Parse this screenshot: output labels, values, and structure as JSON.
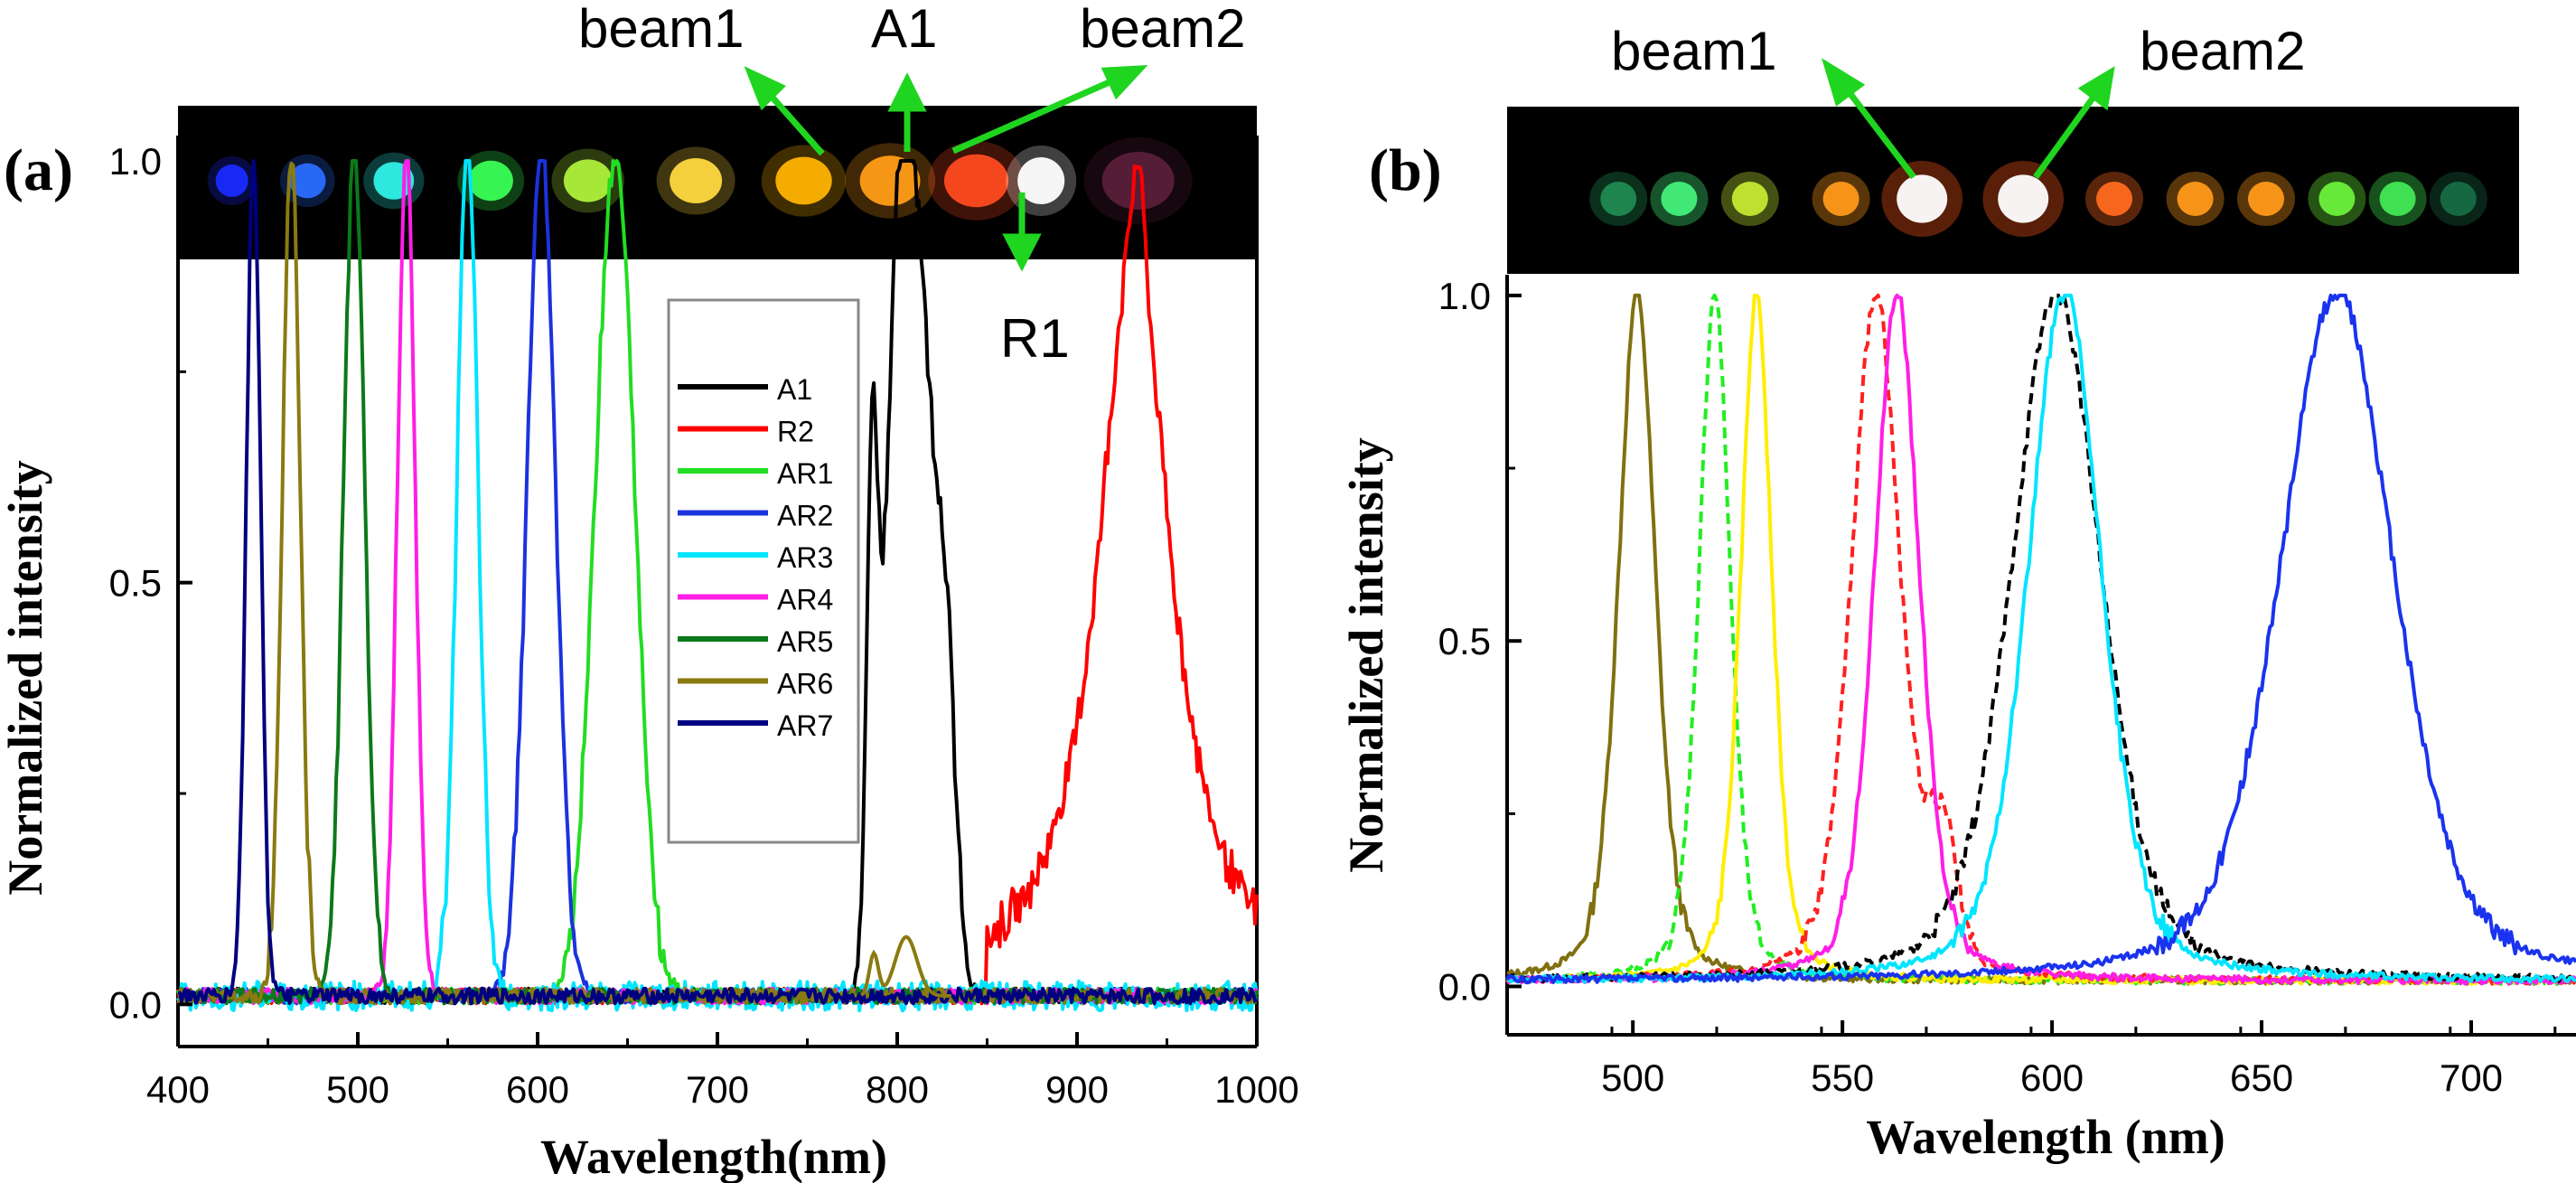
{
  "panels": [
    {
      "id": "a",
      "label": "(a)",
      "image_labels": {
        "beam1": "beam1",
        "a1": "A1",
        "beam2": "beam2",
        "r1": "R1"
      },
      "photo_spots": [
        {
          "color": "#1a2bff",
          "pos": 0.05
        },
        {
          "color": "#2b6bff",
          "pos": 0.12
        },
        {
          "color": "#30f0e8",
          "pos": 0.2
        },
        {
          "color": "#39ff55",
          "pos": 0.29
        },
        {
          "color": "#aef03a",
          "pos": 0.38
        },
        {
          "color": "#ffd940",
          "pos": 0.48
        },
        {
          "color": "#ffb300",
          "pos": 0.58
        },
        {
          "color": "#ff9c16",
          "pos": 0.66
        },
        {
          "color": "#ff4a20",
          "pos": 0.74
        },
        {
          "color": "#ffffff",
          "pos": 0.8
        },
        {
          "color": "#5a1f3a",
          "pos": 0.89
        }
      ]
    },
    {
      "id": "b",
      "label": "(b)",
      "image_labels": {
        "beam1": "beam1",
        "beam2": "beam2"
      },
      "photo_spots": [
        {
          "color": "#1f8a50",
          "pos": 0.11
        },
        {
          "color": "#43f07a",
          "pos": 0.17
        },
        {
          "color": "#c7e833",
          "pos": 0.24
        },
        {
          "color": "#ff9a1a",
          "pos": 0.33
        },
        {
          "color": "#ffffff",
          "pos": 0.41
        },
        {
          "color": "#ffffff",
          "pos": 0.51
        },
        {
          "color": "#ff6a1f",
          "pos": 0.6
        },
        {
          "color": "#ff9a1a",
          "pos": 0.68
        },
        {
          "color": "#ff9a1a",
          "pos": 0.75
        },
        {
          "color": "#6cf03a",
          "pos": 0.82
        },
        {
          "color": "#43e855",
          "pos": 0.88
        },
        {
          "color": "#166b44",
          "pos": 0.94
        }
      ]
    }
  ],
  "chart_data": [
    {
      "type": "line",
      "panel": "a",
      "xlabel": "Wavelength(nm)",
      "ylabel": "Normalized intensity",
      "xlim": [
        400,
        1000
      ],
      "ylim": [
        -0.05,
        1.03
      ],
      "xticks": [
        400,
        500,
        600,
        700,
        800,
        900,
        1000
      ],
      "xtick_labels": [
        "400",
        "500",
        "600",
        "700",
        "800",
        "900",
        "1000"
      ],
      "yticks": [
        0.0,
        0.5,
        1.0
      ],
      "ytick_labels": [
        "0.0",
        "0.5",
        "1.0"
      ],
      "legend_position": "upper-middle",
      "series": [
        {
          "name": "A1",
          "color": "#000000",
          "shape": "a1",
          "center": 803,
          "width": 12
        },
        {
          "name": "R2",
          "color": "#ff0000",
          "shape": "r2",
          "center": 932,
          "width": 24
        },
        {
          "name": "AR1",
          "color": "#22dd22",
          "shape": "gauss",
          "center": 643,
          "width": 11
        },
        {
          "name": "AR2",
          "color": "#1a33dd",
          "shape": "gauss",
          "center": 602,
          "width": 8
        },
        {
          "name": "AR3",
          "color": "#00e5ff",
          "shape": "gauss",
          "center": 561,
          "width": 6
        },
        {
          "name": "AR4",
          "color": "#ff1ee6",
          "shape": "gauss",
          "center": 527,
          "width": 5
        },
        {
          "name": "AR5",
          "color": "#0a7a1a",
          "shape": "gauss",
          "center": 498,
          "width": 6
        },
        {
          "name": "AR6",
          "color": "#8a7a10",
          "shape": "gauss",
          "center": 463,
          "width": 5
        },
        {
          "name": "AR7",
          "color": "#000080",
          "shape": "gauss",
          "center": 442,
          "width": 4
        }
      ]
    },
    {
      "type": "line",
      "panel": "b",
      "xlabel": "Wavelength (nm)",
      "ylabel": "Normalized intensity",
      "xlim": [
        470,
        725
      ],
      "ylim": [
        -0.07,
        1.03
      ],
      "xticks": [
        500,
        550,
        600,
        650,
        700
      ],
      "xtick_labels": [
        "500",
        "550",
        "600",
        "650",
        "700"
      ],
      "yticks": [
        0.0,
        0.5,
        1.0
      ],
      "ytick_labels": [
        "0.0",
        "0.5",
        "1.0"
      ],
      "series": [
        {
          "color": "#807010",
          "dash": false,
          "center": 501,
          "width": 4.5
        },
        {
          "color": "#22ee22",
          "dash": true,
          "center": 519.5,
          "width": 3.8
        },
        {
          "color": "#ffee00",
          "dash": false,
          "center": 529.5,
          "width": 3.8
        },
        {
          "color": "#ff2020",
          "dash": true,
          "center": 558,
          "width": 6,
          "shoulder": 574
        },
        {
          "color": "#ff1ee6",
          "dash": false,
          "center": 563,
          "width": 5.5
        },
        {
          "color": "#000000",
          "dash": true,
          "center": 601,
          "width": 11
        },
        {
          "color": "#00e5ff",
          "dash": false,
          "center": 603,
          "width": 9
        },
        {
          "color": "#1a33ee",
          "dash": false,
          "center": 668,
          "width": 14
        }
      ]
    }
  ]
}
